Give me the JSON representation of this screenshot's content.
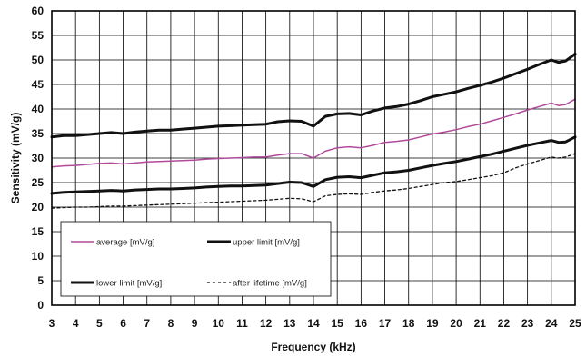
{
  "chart_data": {
    "type": "line",
    "xlabel": "Frequency (kHz)",
    "ylabel": "Sensitivity (mV/g)",
    "xlim": [
      3,
      25
    ],
    "ylim": [
      0,
      60
    ],
    "x_ticks": [
      3,
      4,
      5,
      6,
      7,
      8,
      9,
      10,
      11,
      12,
      13,
      14,
      15,
      16,
      17,
      18,
      19,
      20,
      21,
      22,
      23,
      24,
      25
    ],
    "y_ticks": [
      0,
      5,
      10,
      15,
      20,
      25,
      30,
      35,
      40,
      45,
      50,
      55,
      60
    ],
    "grid": true,
    "legend_position": "lower-left",
    "x": [
      3,
      3.5,
      4,
      4.5,
      5,
      5.5,
      6,
      6.5,
      7,
      7.5,
      8,
      8.5,
      9,
      9.5,
      10,
      10.5,
      11,
      11.5,
      12,
      12.5,
      13,
      13.5,
      14,
      14.5,
      15,
      15.5,
      16,
      16.5,
      17,
      17.5,
      18,
      18.5,
      19,
      19.5,
      20,
      20.5,
      21,
      21.5,
      22,
      22.5,
      23,
      23.5,
      24,
      24.3,
      24.6,
      25
    ],
    "series": [
      {
        "name": "average   [mV/g]",
        "color": "#b04a9a",
        "style": "thin-solid",
        "values": [
          28.2,
          28.4,
          28.5,
          28.7,
          28.9,
          29.0,
          28.8,
          29.0,
          29.2,
          29.3,
          29.4,
          29.5,
          29.6,
          29.8,
          29.9,
          30.0,
          30.1,
          30.2,
          30.2,
          30.6,
          30.9,
          30.9,
          30.0,
          31.4,
          32.1,
          32.3,
          32.1,
          32.6,
          33.2,
          33.4,
          33.7,
          34.3,
          34.9,
          35.3,
          35.8,
          36.4,
          36.9,
          37.6,
          38.3,
          39.0,
          39.8,
          40.5,
          41.2,
          40.7,
          40.9,
          42.0
        ]
      },
      {
        "name": "upper limit  [mV/g]",
        "color": "#111111",
        "style": "thick-solid",
        "values": [
          34.3,
          34.6,
          34.6,
          34.8,
          35.0,
          35.2,
          35.0,
          35.3,
          35.5,
          35.7,
          35.7,
          35.9,
          36.1,
          36.3,
          36.5,
          36.6,
          36.7,
          36.8,
          36.9,
          37.4,
          37.6,
          37.5,
          36.5,
          38.5,
          39.0,
          39.1,
          38.8,
          39.6,
          40.2,
          40.5,
          41.0,
          41.7,
          42.5,
          43.0,
          43.5,
          44.2,
          44.8,
          45.5,
          46.3,
          47.2,
          48.1,
          49.1,
          50.0,
          49.5,
          49.8,
          51.2
        ]
      },
      {
        "name": "lower limit  [mV/g]",
        "color": "#111111",
        "style": "thick-solid",
        "values": [
          22.8,
          23.0,
          23.1,
          23.2,
          23.3,
          23.4,
          23.3,
          23.5,
          23.6,
          23.7,
          23.7,
          23.8,
          23.9,
          24.1,
          24.2,
          24.3,
          24.3,
          24.4,
          24.5,
          24.8,
          25.1,
          25.0,
          24.2,
          25.6,
          26.1,
          26.2,
          26.0,
          26.5,
          27.0,
          27.2,
          27.5,
          28.0,
          28.5,
          28.9,
          29.3,
          29.8,
          30.3,
          30.8,
          31.4,
          32.0,
          32.6,
          33.1,
          33.6,
          33.2,
          33.3,
          34.3
        ]
      },
      {
        "name": "after lifetime  [mV/g]",
        "color": "#111111",
        "style": "dashed",
        "values": [
          19.8,
          19.9,
          20.0,
          20.0,
          20.1,
          20.2,
          20.2,
          20.3,
          20.4,
          20.5,
          20.6,
          20.7,
          20.8,
          20.9,
          21.0,
          21.1,
          21.2,
          21.3,
          21.4,
          21.6,
          21.8,
          21.7,
          21.1,
          22.3,
          22.6,
          22.7,
          22.6,
          23.0,
          23.3,
          23.5,
          23.8,
          24.2,
          24.6,
          25.0,
          25.2,
          25.6,
          26.0,
          26.4,
          27.0,
          28.0,
          28.8,
          29.5,
          30.2,
          30.0,
          30.2,
          30.9
        ]
      }
    ]
  }
}
